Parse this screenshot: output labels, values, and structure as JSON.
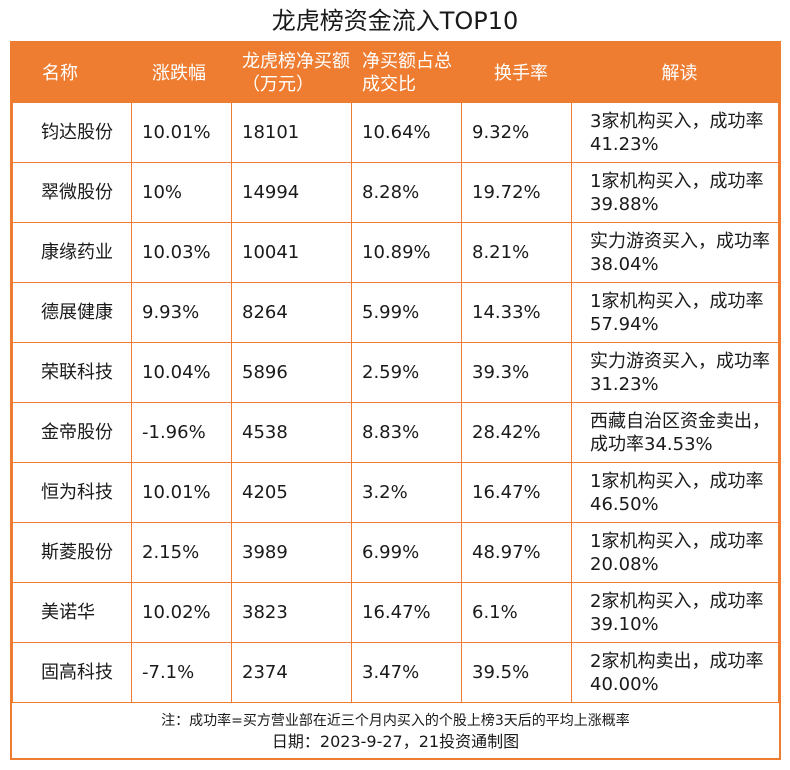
{
  "title": "龙虎榜资金流入TOP10",
  "headers": {
    "name": "名称",
    "change": "涨跌幅",
    "net_buy": "龙虎榜净买额（万元）",
    "ratio": "净买额占总成交比",
    "turnover": "换手率",
    "comment": "解读"
  },
  "rows": [
    {
      "name": "钧达股份",
      "change": "10.01%",
      "net_buy": "18101",
      "ratio": "10.64%",
      "turnover": "9.32%",
      "comment": "3家机构买入，成功率41.23%"
    },
    {
      "name": "翠微股份",
      "change": "10%",
      "net_buy": "14994",
      "ratio": "8.28%",
      "turnover": "19.72%",
      "comment": "1家机构买入，成功率39.88%"
    },
    {
      "name": "康缘药业",
      "change": "10.03%",
      "net_buy": "10041",
      "ratio": "10.89%",
      "turnover": "8.21%",
      "comment": "实力游资买入，成功率38.04%"
    },
    {
      "name": "德展健康",
      "change": "9.93%",
      "net_buy": "8264",
      "ratio": "5.99%",
      "turnover": "14.33%",
      "comment": "1家机构买入，成功率57.94%"
    },
    {
      "name": "荣联科技",
      "change": "10.04%",
      "net_buy": "5896",
      "ratio": "2.59%",
      "turnover": "39.3%",
      "comment": "实力游资买入，成功率31.23%"
    },
    {
      "name": "金帝股份",
      "change": "-1.96%",
      "net_buy": "4538",
      "ratio": "8.83%",
      "turnover": "28.42%",
      "comment": "西藏自治区资金卖出，成功率34.53%"
    },
    {
      "name": "恒为科技",
      "change": "10.01%",
      "net_buy": "4205",
      "ratio": "3.2%",
      "turnover": "16.47%",
      "comment": "1家机构买入，成功率46.50%"
    },
    {
      "name": "斯菱股份",
      "change": "2.15%",
      "net_buy": "3989",
      "ratio": "6.99%",
      "turnover": "48.97%",
      "comment": "1家机构买入，成功率20.08%"
    },
    {
      "name": "美诺华",
      "change": "10.02%",
      "net_buy": "3823",
      "ratio": "16.47%",
      "turnover": "6.1%",
      "comment": "2家机构买入，成功率39.10%"
    },
    {
      "name": "固高科技",
      "change": "-7.1%",
      "net_buy": "2374",
      "ratio": "3.47%",
      "turnover": "39.5%",
      "comment": "2家机构卖出，成功率40.00%"
    }
  ],
  "footer": {
    "note": "注：成功率=买方营业部在近三个月内买入的个股上榜3天后的平均上涨概率",
    "date": "日期：2023-9-27，21投资通制图"
  },
  "colors": {
    "accent": "#ee7d31",
    "header_text": "#ffffff",
    "body_text": "#1a1a1a"
  }
}
